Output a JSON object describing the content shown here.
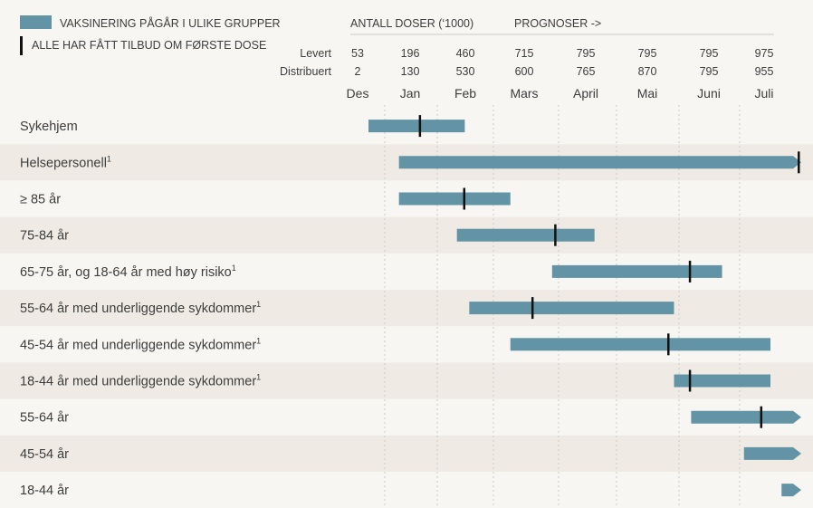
{
  "chart_data": {
    "type": "bar",
    "subtype": "gantt",
    "legend": {
      "placement": "top-left",
      "bar_label": "VAKSINERING PÅGÅR I ULIKE GRUPPER",
      "marker_label": "ALLE HAR FÅTT TILBUD OM FØRSTE DOSE"
    },
    "doses_header": "ANTALL DOSER (‘1000)",
    "forecast_header": "PROGNOSER ->",
    "months": [
      "Des",
      "Jan",
      "Feb",
      "Mars",
      "April",
      "Mai",
      "Juni",
      "Juli"
    ],
    "series": [
      {
        "name": "Levert",
        "values": [
          53,
          196,
          460,
          715,
          795,
          795,
          795,
          975
        ]
      },
      {
        "name": "Distribuert",
        "values": [
          2,
          130,
          530,
          600,
          765,
          870,
          795,
          955
        ]
      }
    ],
    "groups": [
      {
        "label": "Sykehjem",
        "sup": "",
        "start": 0.7,
        "end": 2.49,
        "marker": 1.67,
        "arrow": false
      },
      {
        "label": "Helsepersonell",
        "sup": "1",
        "start": 1.27,
        "end": 8.0,
        "marker": 7.96,
        "arrow": true
      },
      {
        "label": "≥ 85 år",
        "sup": "",
        "start": 1.27,
        "end": 3.26,
        "marker": 2.48,
        "arrow": false
      },
      {
        "label": "75-84 år",
        "sup": "",
        "start": 2.35,
        "end": 4.62,
        "marker": 3.95,
        "arrow": false
      },
      {
        "label": "65-75 år, og 18-64 år med høy risiko",
        "sup": "1",
        "start": 3.9,
        "end": 6.71,
        "marker": 6.18,
        "arrow": false
      },
      {
        "label": "55-64 år med underliggende sykdommer",
        "sup": "1",
        "start": 2.57,
        "end": 5.92,
        "marker": 3.6,
        "arrow": false
      },
      {
        "label": "45-54 år med underliggende sykdommer",
        "sup": "1",
        "start": 3.26,
        "end": 7.5,
        "marker": 5.83,
        "arrow": false
      },
      {
        "label": "18-44 år med underliggende sykdommer",
        "sup": "1",
        "start": 5.92,
        "end": 7.5,
        "marker": 6.18,
        "arrow": false
      },
      {
        "label": "55-64 år",
        "sup": "",
        "start": 6.2,
        "end": 8.0,
        "marker": 7.35,
        "arrow": true
      },
      {
        "label": "45-54 år",
        "sup": "",
        "start": 7.07,
        "end": 8.0,
        "marker": null,
        "arrow": true
      },
      {
        "label": "18-44 år",
        "sup": "",
        "start": 7.68,
        "end": 8.0,
        "marker": null,
        "arrow": true
      }
    ],
    "colors": {
      "bar": "#6394a5",
      "marker": "#111111",
      "row_shade": "#efebe4",
      "background": "#f7f6f3",
      "grid": "#c9c9c9",
      "text": "#3d3d3d"
    },
    "grid": "dashed-vertical"
  }
}
